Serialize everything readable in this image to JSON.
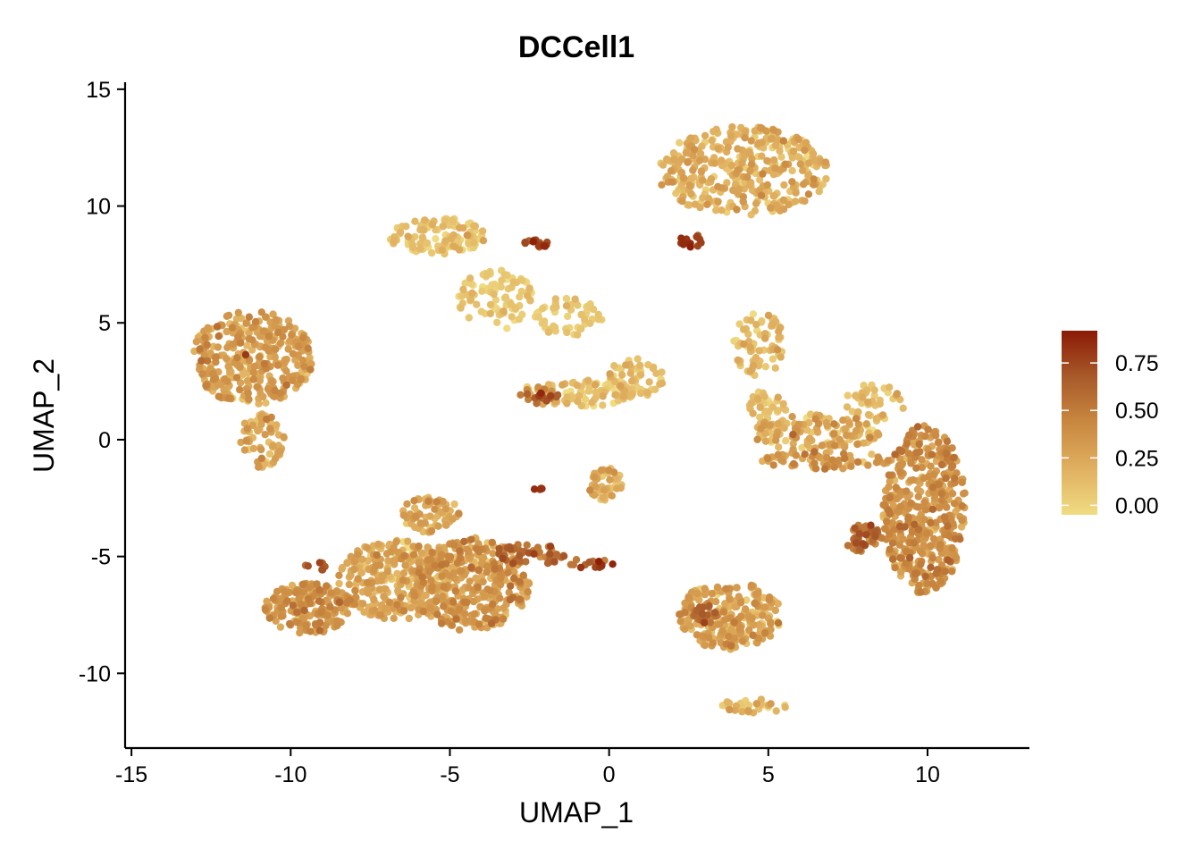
{
  "chart_data": {
    "type": "scatter",
    "title": "DCCell1",
    "xlabel": "UMAP_1",
    "ylabel": "UMAP_2",
    "xlim": [
      -15.2,
      13.2
    ],
    "ylim": [
      -13.2,
      15.3
    ],
    "x_ticks": [
      -15,
      -10,
      -5,
      0,
      5,
      10
    ],
    "y_ticks": [
      -10,
      -5,
      0,
      5,
      10,
      15
    ],
    "x_tick_labels": [
      "-15",
      "-10",
      "-5",
      "0",
      "5",
      "10"
    ],
    "y_tick_labels": [
      "-10",
      "-5",
      "0",
      "5",
      "10",
      "15"
    ],
    "grid": false,
    "legend_position": "right",
    "colorbar": {
      "min": -0.05,
      "max": 0.92,
      "ticks": [
        0.0,
        0.25,
        0.5,
        0.75
      ],
      "tick_labels": [
        "0.00",
        "0.25",
        "0.50",
        "0.75"
      ],
      "colors": [
        "#F0DC82",
        "#E0B060",
        "#C98840",
        "#A85A2A",
        "#8B1A05"
      ]
    },
    "clusters": [
      {
        "cx": -11.2,
        "cy": 3.5,
        "rx": 1.9,
        "ry": 2.0,
        "n": 360,
        "mean": 0.28,
        "sd": 0.1
      },
      {
        "cx": -10.9,
        "cy": 0.0,
        "rx": 0.7,
        "ry": 1.2,
        "n": 70,
        "mean": 0.18,
        "sd": 0.1
      },
      {
        "cx": -5.4,
        "cy": 8.7,
        "rx": 1.5,
        "ry": 0.8,
        "n": 110,
        "mean": 0.08,
        "sd": 0.08
      },
      {
        "cx": -3.5,
        "cy": 6.0,
        "rx": 1.3,
        "ry": 1.3,
        "n": 90,
        "mean": 0.05,
        "sd": 0.06
      },
      {
        "cx": -1.3,
        "cy": 5.2,
        "rx": 1.1,
        "ry": 0.9,
        "n": 50,
        "mean": 0.05,
        "sd": 0.06
      },
      {
        "cx": -2.3,
        "cy": 8.4,
        "rx": 0.4,
        "ry": 0.2,
        "n": 16,
        "mean": 0.75,
        "sd": 0.1
      },
      {
        "cx": -1.0,
        "cy": 2.0,
        "rx": 1.8,
        "ry": 0.6,
        "n": 90,
        "mean": 0.12,
        "sd": 0.1
      },
      {
        "cx": 0.8,
        "cy": 2.6,
        "rx": 0.9,
        "ry": 0.9,
        "n": 60,
        "mean": 0.08,
        "sd": 0.08
      },
      {
        "cx": -2.2,
        "cy": 1.9,
        "rx": 0.6,
        "ry": 0.35,
        "n": 22,
        "mean": 0.6,
        "sd": 0.15
      },
      {
        "cx": -0.1,
        "cy": -1.9,
        "rx": 0.55,
        "ry": 0.7,
        "n": 40,
        "mean": 0.22,
        "sd": 0.1
      },
      {
        "cx": -2.2,
        "cy": -2.1,
        "rx": 0.2,
        "ry": 0.1,
        "n": 5,
        "mean": 0.7,
        "sd": 0.1
      },
      {
        "cx": 4.2,
        "cy": 11.5,
        "rx": 2.7,
        "ry": 1.9,
        "n": 380,
        "mean": 0.18,
        "sd": 0.1
      },
      {
        "cx": 2.6,
        "cy": 8.5,
        "rx": 0.4,
        "ry": 0.3,
        "n": 14,
        "mean": 0.8,
        "sd": 0.1
      },
      {
        "cx": -11.4,
        "cy": 3.6,
        "rx": 0.05,
        "ry": 0.05,
        "n": 1,
        "mean": 0.82,
        "sd": 0.02
      },
      {
        "cx": 4.7,
        "cy": 4.1,
        "rx": 0.8,
        "ry": 1.4,
        "n": 70,
        "mean": 0.14,
        "sd": 0.1
      },
      {
        "cx": 5.0,
        "cy": 1.3,
        "rx": 0.6,
        "ry": 1.0,
        "n": 35,
        "mean": 0.1,
        "sd": 0.08
      },
      {
        "cx": 6.5,
        "cy": 0.3,
        "rx": 2.0,
        "ry": 0.8,
        "n": 140,
        "mean": 0.2,
        "sd": 0.12
      },
      {
        "cx": 6.8,
        "cy": -0.9,
        "rx": 2.0,
        "ry": 0.4,
        "n": 70,
        "mean": 0.32,
        "sd": 0.12
      },
      {
        "cx": 8.3,
        "cy": 1.6,
        "rx": 1.0,
        "ry": 0.8,
        "n": 45,
        "mean": 0.12,
        "sd": 0.08
      },
      {
        "cx": 9.9,
        "cy": -3.0,
        "rx": 1.3,
        "ry": 3.6,
        "n": 460,
        "mean": 0.36,
        "sd": 0.12
      },
      {
        "cx": 8.0,
        "cy": -4.2,
        "rx": 0.6,
        "ry": 0.6,
        "n": 45,
        "mean": 0.58,
        "sd": 0.12
      },
      {
        "cx": 3.8,
        "cy": -7.5,
        "rx": 1.6,
        "ry": 1.5,
        "n": 260,
        "mean": 0.25,
        "sd": 0.12
      },
      {
        "cx": 3.0,
        "cy": -7.5,
        "rx": 0.5,
        "ry": 0.4,
        "n": 25,
        "mean": 0.55,
        "sd": 0.12
      },
      {
        "cx": 4.5,
        "cy": -11.4,
        "rx": 1.1,
        "ry": 0.3,
        "n": 32,
        "mean": 0.15,
        "sd": 0.1
      },
      {
        "cx": -9.4,
        "cy": -7.2,
        "rx": 1.4,
        "ry": 1.1,
        "n": 180,
        "mean": 0.35,
        "sd": 0.1
      },
      {
        "cx": -6.7,
        "cy": -6.0,
        "rx": 1.8,
        "ry": 1.7,
        "n": 300,
        "mean": 0.22,
        "sd": 0.12
      },
      {
        "cx": -4.3,
        "cy": -6.2,
        "rx": 1.8,
        "ry": 2.0,
        "n": 360,
        "mean": 0.32,
        "sd": 0.12
      },
      {
        "cx": -5.6,
        "cy": -3.2,
        "rx": 0.9,
        "ry": 0.8,
        "n": 70,
        "mean": 0.22,
        "sd": 0.1
      },
      {
        "cx": -2.5,
        "cy": -4.9,
        "rx": 1.2,
        "ry": 0.45,
        "n": 50,
        "mean": 0.55,
        "sd": 0.14
      },
      {
        "cx": -0.6,
        "cy": -5.3,
        "rx": 0.8,
        "ry": 0.2,
        "n": 16,
        "mean": 0.65,
        "sd": 0.12
      },
      {
        "cx": -9.2,
        "cy": -5.4,
        "rx": 0.4,
        "ry": 0.2,
        "n": 8,
        "mean": 0.65,
        "sd": 0.1
      }
    ]
  }
}
